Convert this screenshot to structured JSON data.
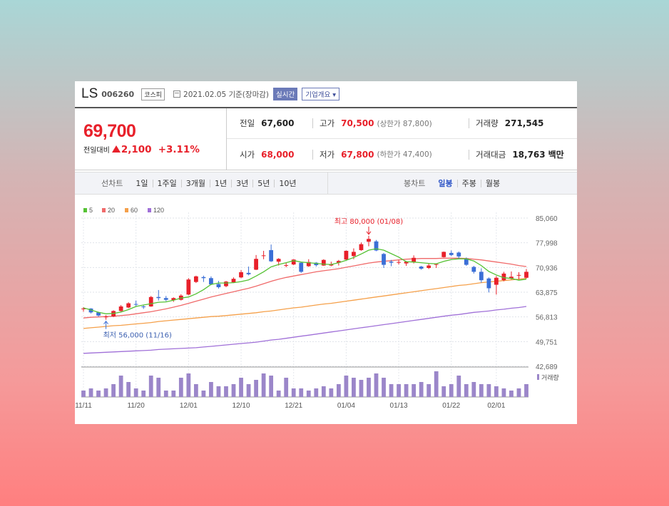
{
  "header": {
    "company_name": "LS",
    "code": "006260",
    "market": "코스피",
    "date_text": "2021.02.05  기준(장마감)",
    "live_label": "실시간",
    "info_label": "기업개요 ▾"
  },
  "quote": {
    "price": "69,700",
    "change_label": "전일대비",
    "change_value": "2,100",
    "change_pct": "+3.11%",
    "prev_close_label": "전일",
    "prev_close": "67,600",
    "high_label": "고가",
    "high": "70,500",
    "upper_limit": "(상한가 87,800)",
    "volume_label": "거래량",
    "volume": "271,545",
    "open_label": "시가",
    "open": "68,000",
    "low_label": "저가",
    "low": "67,800",
    "lower_limit": "(하한가 47,400)",
    "amount_label": "거래대금",
    "amount": "18,763",
    "amount_unit": "백만"
  },
  "tabs": {
    "line_label": "선차트",
    "line_items": [
      "1일",
      "1주일",
      "3개월",
      "1년",
      "3년",
      "5년",
      "10년"
    ],
    "candle_label": "봉차트",
    "candle_items": [
      "일봉",
      "주봉",
      "월봉"
    ],
    "candle_active": "일봉"
  },
  "colors": {
    "up": "#e8202a",
    "down": "#3b6fd6",
    "ma5": "#55c234",
    "ma20": "#f06a6a",
    "ma60": "#f5a04a",
    "ma120": "#a070d8",
    "volume": "#9b86c9"
  },
  "chart_data": {
    "type": "candlestick",
    "legend": [
      "5",
      "20",
      "60",
      "120"
    ],
    "y_ticks": [
      85060,
      77998,
      70936,
      63875,
      56813,
      49751,
      42689
    ],
    "ylim": [
      42689,
      85060
    ],
    "x_tick_labels": [
      {
        "label": "11/11",
        "index": 0
      },
      {
        "label": "11/20",
        "index": 7
      },
      {
        "label": "12/01",
        "index": 14
      },
      {
        "label": "12/10",
        "index": 21
      },
      {
        "label": "12/21",
        "index": 28
      },
      {
        "label": "01/04",
        "index": 35
      },
      {
        "label": "01/13",
        "index": 42
      },
      {
        "label": "01/22",
        "index": 49
      },
      {
        "label": "02/01",
        "index": 55
      }
    ],
    "candles": [
      [
        59000,
        59600,
        58300,
        59200
      ],
      [
        59200,
        59300,
        57800,
        58100
      ],
      [
        58100,
        58300,
        56900,
        57200
      ],
      [
        56800,
        57300,
        56000,
        56900
      ],
      [
        56900,
        58700,
        56800,
        58500
      ],
      [
        58500,
        60200,
        58200,
        59800
      ],
      [
        59500,
        61000,
        59300,
        60700
      ],
      [
        60500,
        61500,
        59800,
        60300
      ],
      [
        59800,
        60300,
        59100,
        59600
      ],
      [
        59800,
        62800,
        59700,
        62500
      ],
      [
        62500,
        64500,
        61500,
        62200
      ],
      [
        62200,
        62800,
        61300,
        61700
      ],
      [
        61600,
        62400,
        61100,
        62200
      ],
      [
        61700,
        63300,
        61500,
        62900
      ],
      [
        63200,
        67900,
        63000,
        67500
      ],
      [
        66800,
        68600,
        66500,
        68400
      ],
      [
        68200,
        68600,
        66800,
        67900
      ],
      [
        67900,
        68400,
        65900,
        66100
      ],
      [
        66200,
        67100,
        64900,
        65300
      ],
      [
        65600,
        67100,
        65300,
        66900
      ],
      [
        66700,
        68100,
        66500,
        67700
      ],
      [
        68100,
        70200,
        67900,
        69600
      ],
      [
        69400,
        71200,
        68700,
        69000
      ],
      [
        70300,
        74500,
        70200,
        73400
      ],
      [
        74200,
        75700,
        73300,
        74400
      ],
      [
        75900,
        77500,
        72500,
        72700
      ],
      [
        72600,
        73600,
        71500,
        73400
      ],
      [
        71400,
        72300,
        71000,
        71600
      ],
      [
        71800,
        73300,
        71600,
        73200
      ],
      [
        72300,
        72500,
        69400,
        69700
      ],
      [
        71300,
        73300,
        71100,
        72500
      ],
      [
        72300,
        72500,
        71200,
        71600
      ],
      [
        71500,
        73300,
        71400,
        73100
      ],
      [
        71500,
        72600,
        71300,
        71900
      ],
      [
        72300,
        73100,
        71500,
        72800
      ],
      [
        73200,
        75800,
        73000,
        75700
      ],
      [
        74200,
        76400,
        73300,
        75400
      ],
      [
        75900,
        78100,
        75700,
        77600
      ],
      [
        78300,
        80000,
        77000,
        79100
      ],
      [
        78400,
        78800,
        75600,
        75800
      ],
      [
        74800,
        75100,
        70800,
        71700
      ],
      [
        72600,
        73100,
        71300,
        72300
      ],
      [
        72300,
        73000,
        71800,
        72500
      ],
      [
        72100,
        72800,
        71400,
        72600
      ],
      [
        72400,
        74400,
        72100,
        73700
      ],
      [
        71200,
        71400,
        70300,
        70600
      ],
      [
        70800,
        72100,
        70500,
        71500
      ],
      [
        71800,
        72100,
        70800,
        71900
      ],
      [
        73900,
        75500,
        73800,
        75400
      ],
      [
        75100,
        75800,
        74200,
        74500
      ],
      [
        75200,
        75500,
        73500,
        74100
      ],
      [
        73500,
        73800,
        71400,
        71700
      ],
      [
        71100,
        71400,
        69200,
        69700
      ],
      [
        69700,
        70700,
        66600,
        67300
      ],
      [
        67800,
        68100,
        63800,
        65000
      ],
      [
        66000,
        68500,
        63200,
        68000
      ],
      [
        67300,
        69700,
        67000,
        69200
      ],
      [
        67800,
        69800,
        67500,
        68300
      ],
      [
        68600,
        69600,
        67600,
        68800
      ],
      [
        68000,
        70500,
        67800,
        69700
      ]
    ],
    "ma5": [
      59400,
      58800,
      58100,
      57700,
      57800,
      58200,
      58900,
      59800,
      60200,
      60600,
      61000,
      61100,
      61600,
      62200,
      62500,
      63400,
      64600,
      66100,
      66500,
      66500,
      66600,
      66900,
      67400,
      68500,
      69700,
      71100,
      71800,
      72300,
      72900,
      72500,
      72300,
      72100,
      71900,
      71800,
      72300,
      73000,
      73800,
      74800,
      75900,
      76300,
      75900,
      74900,
      73900,
      72600,
      72500,
      72300,
      72100,
      72000,
      72700,
      73200,
      73400,
      73400,
      72800,
      71500,
      69800,
      68800,
      68000,
      67800,
      67300,
      67600
    ],
    "ma20": [
      56500,
      56700,
      56800,
      56900,
      57000,
      57200,
      57400,
      57700,
      58000,
      58300,
      58700,
      59100,
      59600,
      60100,
      60700,
      61300,
      61900,
      62500,
      63000,
      63500,
      64000,
      64500,
      65000,
      65600,
      66300,
      67000,
      67600,
      68100,
      68500,
      68900,
      69300,
      69700,
      70000,
      70300,
      70600,
      71000,
      71400,
      71800,
      72200,
      72500,
      72700,
      72900,
      73100,
      73300,
      73400,
      73500,
      73500,
      73500,
      73600,
      73600,
      73600,
      73500,
      73300,
      73100,
      72800,
      72500,
      72200,
      71900,
      71500,
      71200
    ],
    "ma60": [
      53500,
      53700,
      53900,
      54100,
      54300,
      54400,
      54600,
      54800,
      55000,
      55200,
      55500,
      55700,
      55900,
      56100,
      56300,
      56500,
      56700,
      56900,
      57000,
      57200,
      57400,
      57600,
      57800,
      58000,
      58300,
      58500,
      58800,
      59100,
      59400,
      59600,
      59900,
      60200,
      60500,
      60700,
      61000,
      61300,
      61600,
      61900,
      62200,
      62500,
      62800,
      63100,
      63400,
      63700,
      64000,
      64300,
      64600,
      64900,
      65200,
      65500,
      65800,
      66000,
      66300,
      66600,
      66800,
      67000,
      67200,
      67400,
      67600,
      67800
    ],
    "ma120": [
      46400,
      46500,
      46600,
      46700,
      46800,
      46900,
      47000,
      47100,
      47200,
      47300,
      47500,
      47600,
      47700,
      47800,
      47900,
      48000,
      48200,
      48400,
      48600,
      48800,
      49000,
      49200,
      49400,
      49600,
      49900,
      50200,
      50400,
      50700,
      51000,
      51300,
      51600,
      51900,
      52200,
      52500,
      52800,
      53100,
      53400,
      53700,
      54000,
      54300,
      54600,
      54900,
      55200,
      55500,
      55800,
      56100,
      56400,
      56700,
      57000,
      57300,
      57500,
      57800,
      58100,
      58300,
      58500,
      58800,
      59000,
      59300,
      59500,
      59800
    ],
    "volume": [
      3,
      4,
      3,
      4,
      6,
      10,
      7,
      4,
      3,
      10,
      9,
      3,
      3,
      9,
      11,
      6,
      3,
      7,
      5,
      5,
      6,
      9,
      6,
      8,
      11,
      10,
      3,
      9,
      4,
      4,
      3,
      4,
      5,
      4,
      6,
      10,
      9,
      8,
      9,
      11,
      9,
      6,
      6,
      6,
      6,
      7,
      6,
      12,
      5,
      6,
      10,
      6,
      7,
      6,
      6,
      5,
      4,
      3,
      4,
      6
    ],
    "volume_legend": "거래량",
    "annotations": {
      "max_label": "최고 80,000 (01/08)",
      "min_label": "최저 56,000 (11/16)"
    }
  }
}
